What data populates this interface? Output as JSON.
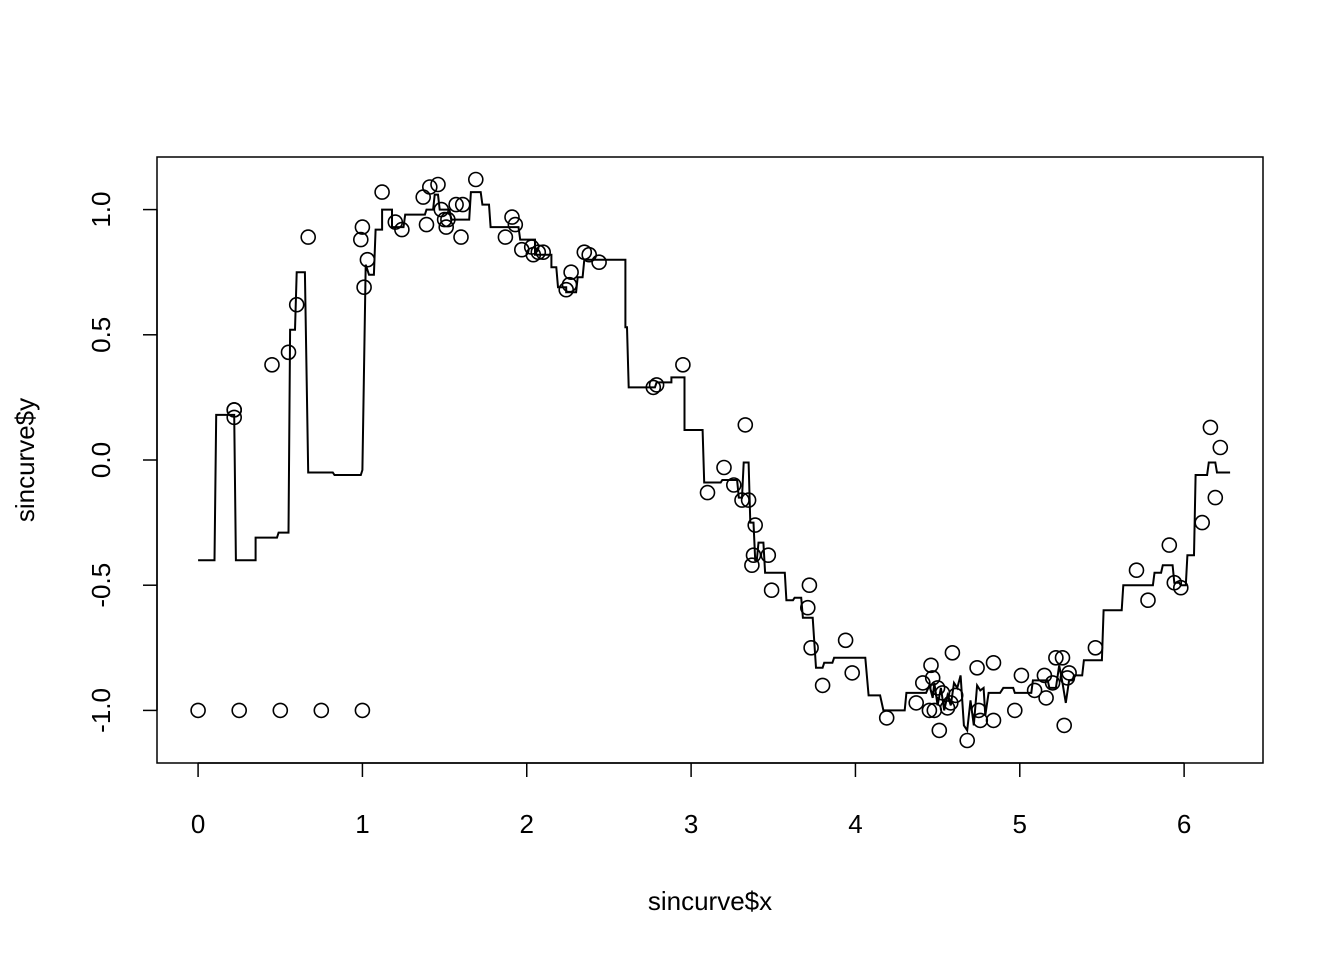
{
  "chart_data": {
    "type": "scatter",
    "title": "",
    "xlabel": "sincurve$x",
    "ylabel": "sincurve$y",
    "xlim": [
      -0.25,
      6.48
    ],
    "ylim": [
      -1.21,
      1.21
    ],
    "xticks": [
      "0",
      "1",
      "2",
      "3",
      "4",
      "5",
      "6"
    ],
    "yticks": [
      "-1.0",
      "-0.5",
      "0.0",
      "0.5",
      "1.0"
    ],
    "grid": false,
    "legend": "none",
    "colors": {
      "points": "#000000",
      "line": "#000000",
      "frame": "#000000"
    },
    "series": [
      {
        "type": "scatter",
        "points": [
          [
            0.0,
            -1.0
          ],
          [
            0.25,
            -1.0
          ],
          [
            0.5,
            -1.0
          ],
          [
            0.75,
            -1.0
          ],
          [
            1.0,
            -1.0
          ],
          [
            0.22,
            0.2
          ],
          [
            0.22,
            0.2
          ],
          [
            0.22,
            0.17
          ],
          [
            0.45,
            0.38
          ],
          [
            0.55,
            0.43
          ],
          [
            0.6,
            0.62
          ],
          [
            0.67,
            0.89
          ],
          [
            0.99,
            0.88
          ],
          [
            1.0,
            0.93
          ],
          [
            1.01,
            0.69
          ],
          [
            1.03,
            0.8
          ],
          [
            1.12,
            1.07
          ],
          [
            1.2,
            0.95
          ],
          [
            1.24,
            0.92
          ],
          [
            1.37,
            1.05
          ],
          [
            1.39,
            0.94
          ],
          [
            1.41,
            1.09
          ],
          [
            1.46,
            1.1
          ],
          [
            1.48,
            1.0
          ],
          [
            1.5,
            0.96
          ],
          [
            1.51,
            0.93
          ],
          [
            1.52,
            0.96
          ],
          [
            1.57,
            1.02
          ],
          [
            1.61,
            1.02
          ],
          [
            1.6,
            0.89
          ],
          [
            1.69,
            1.12
          ],
          [
            1.87,
            0.89
          ],
          [
            1.91,
            0.97
          ],
          [
            1.93,
            0.94
          ],
          [
            1.97,
            0.84
          ],
          [
            2.03,
            0.85
          ],
          [
            2.04,
            0.82
          ],
          [
            2.07,
            0.83
          ],
          [
            2.1,
            0.83
          ],
          [
            2.24,
            0.68
          ],
          [
            2.26,
            0.7
          ],
          [
            2.27,
            0.75
          ],
          [
            2.35,
            0.83
          ],
          [
            2.38,
            0.82
          ],
          [
            2.44,
            0.79
          ],
          [
            2.77,
            0.29
          ],
          [
            2.79,
            0.3
          ],
          [
            2.95,
            0.38
          ],
          [
            3.1,
            -0.13
          ],
          [
            3.2,
            -0.03
          ],
          [
            3.26,
            -0.1
          ],
          [
            3.31,
            -0.16
          ],
          [
            3.33,
            0.14
          ],
          [
            3.35,
            -0.16
          ],
          [
            3.37,
            -0.42
          ],
          [
            3.38,
            -0.38
          ],
          [
            3.39,
            -0.26
          ],
          [
            3.47,
            -0.38
          ],
          [
            3.49,
            -0.52
          ],
          [
            3.71,
            -0.59
          ],
          [
            3.72,
            -0.5
          ],
          [
            3.73,
            -0.75
          ],
          [
            3.8,
            -0.9
          ],
          [
            3.94,
            -0.72
          ],
          [
            3.98,
            -0.85
          ],
          [
            4.19,
            -1.03
          ],
          [
            4.37,
            -0.97
          ],
          [
            4.41,
            -0.89
          ],
          [
            4.45,
            -1.0
          ],
          [
            4.46,
            -0.82
          ],
          [
            4.47,
            -0.87
          ],
          [
            4.48,
            -1.0
          ],
          [
            4.5,
            -0.91
          ],
          [
            4.51,
            -1.08
          ],
          [
            4.53,
            -0.93
          ],
          [
            4.56,
            -0.99
          ],
          [
            4.58,
            -0.97
          ],
          [
            4.59,
            -0.77
          ],
          [
            4.61,
            -0.94
          ],
          [
            4.68,
            -1.12
          ],
          [
            4.74,
            -0.83
          ],
          [
            4.75,
            -1.0
          ],
          [
            4.76,
            -1.04
          ],
          [
            4.84,
            -0.81
          ],
          [
            4.84,
            -1.04
          ],
          [
            4.97,
            -1.0
          ],
          [
            5.01,
            -0.86
          ],
          [
            5.09,
            -0.92
          ],
          [
            5.15,
            -0.86
          ],
          [
            5.16,
            -0.95
          ],
          [
            5.2,
            -0.89
          ],
          [
            5.22,
            -0.79
          ],
          [
            5.26,
            -0.79
          ],
          [
            5.27,
            -1.06
          ],
          [
            5.29,
            -0.87
          ],
          [
            5.3,
            -0.85
          ],
          [
            5.46,
            -0.75
          ],
          [
            5.71,
            -0.44
          ],
          [
            5.78,
            -0.56
          ],
          [
            5.91,
            -0.34
          ],
          [
            5.94,
            -0.49
          ],
          [
            5.98,
            -0.51
          ],
          [
            6.11,
            -0.25
          ],
          [
            6.16,
            0.13
          ],
          [
            6.19,
            -0.15
          ],
          [
            6.22,
            0.05
          ]
        ]
      },
      {
        "type": "step-line",
        "points": [
          [
            0.0,
            -0.4
          ],
          [
            0.1,
            -0.4
          ],
          [
            0.11,
            0.18
          ],
          [
            0.22,
            0.18
          ],
          [
            0.23,
            -0.4
          ],
          [
            0.35,
            -0.4
          ],
          [
            0.35,
            -0.31
          ],
          [
            0.48,
            -0.31
          ],
          [
            0.49,
            -0.29
          ],
          [
            0.55,
            -0.29
          ],
          [
            0.56,
            0.52
          ],
          [
            0.59,
            0.52
          ],
          [
            0.6,
            0.75
          ],
          [
            0.65,
            0.75
          ],
          [
            0.67,
            -0.05
          ],
          [
            0.82,
            -0.05
          ],
          [
            0.83,
            -0.06
          ],
          [
            0.99,
            -0.06
          ],
          [
            1.0,
            -0.04
          ],
          [
            1.02,
            0.78
          ],
          [
            1.04,
            0.74
          ],
          [
            1.07,
            0.74
          ],
          [
            1.08,
            0.92
          ],
          [
            1.12,
            0.92
          ],
          [
            1.12,
            1.0
          ],
          [
            1.18,
            1.0
          ],
          [
            1.18,
            0.93
          ],
          [
            1.25,
            0.93
          ],
          [
            1.26,
            0.98
          ],
          [
            1.38,
            0.98
          ],
          [
            1.39,
            1.0
          ],
          [
            1.43,
            1.0
          ],
          [
            1.44,
            1.06
          ],
          [
            1.46,
            1.06
          ],
          [
            1.47,
            1.0
          ],
          [
            1.53,
            1.0
          ],
          [
            1.54,
            0.96
          ],
          [
            1.65,
            0.96
          ],
          [
            1.66,
            1.07
          ],
          [
            1.72,
            1.07
          ],
          [
            1.73,
            1.02
          ],
          [
            1.77,
            1.02
          ],
          [
            1.78,
            0.93
          ],
          [
            1.88,
            0.93
          ],
          [
            1.89,
            0.93
          ],
          [
            1.95,
            0.93
          ],
          [
            1.96,
            0.88
          ],
          [
            2.05,
            0.88
          ],
          [
            2.05,
            0.82
          ],
          [
            2.15,
            0.82
          ],
          [
            2.15,
            0.77
          ],
          [
            2.18,
            0.77
          ],
          [
            2.19,
            0.69
          ],
          [
            2.24,
            0.69
          ],
          [
            2.24,
            0.67
          ],
          [
            2.3,
            0.67
          ],
          [
            2.31,
            0.73
          ],
          [
            2.34,
            0.73
          ],
          [
            2.35,
            0.8
          ],
          [
            2.6,
            0.8
          ],
          [
            2.6,
            0.53
          ],
          [
            2.61,
            0.53
          ],
          [
            2.62,
            0.29
          ],
          [
            2.78,
            0.29
          ],
          [
            2.79,
            0.31
          ],
          [
            2.88,
            0.31
          ],
          [
            2.88,
            0.33
          ],
          [
            2.96,
            0.33
          ],
          [
            2.96,
            0.12
          ],
          [
            3.07,
            0.12
          ],
          [
            3.08,
            -0.09
          ],
          [
            3.18,
            -0.09
          ],
          [
            3.19,
            -0.08
          ],
          [
            3.28,
            -0.08
          ],
          [
            3.29,
            -0.15
          ],
          [
            3.31,
            -0.15
          ],
          [
            3.32,
            -0.01
          ],
          [
            3.35,
            -0.01
          ],
          [
            3.36,
            -0.25
          ],
          [
            3.38,
            -0.25
          ],
          [
            3.39,
            -0.4
          ],
          [
            3.4,
            -0.4
          ],
          [
            3.41,
            -0.33
          ],
          [
            3.44,
            -0.33
          ],
          [
            3.45,
            -0.45
          ],
          [
            3.57,
            -0.45
          ],
          [
            3.58,
            -0.56
          ],
          [
            3.62,
            -0.56
          ],
          [
            3.63,
            -0.55
          ],
          [
            3.67,
            -0.55
          ],
          [
            3.68,
            -0.63
          ],
          [
            3.74,
            -0.63
          ],
          [
            3.76,
            -0.83
          ],
          [
            3.8,
            -0.83
          ],
          [
            3.81,
            -0.81
          ],
          [
            3.86,
            -0.81
          ],
          [
            3.87,
            -0.79
          ],
          [
            4.06,
            -0.79
          ],
          [
            4.08,
            -0.94
          ],
          [
            4.15,
            -0.94
          ],
          [
            4.17,
            -1.0
          ],
          [
            4.3,
            -1.0
          ],
          [
            4.31,
            -0.93
          ],
          [
            4.43,
            -0.93
          ],
          [
            4.45,
            -0.9
          ],
          [
            4.47,
            -0.95
          ],
          [
            4.48,
            -0.89
          ],
          [
            4.5,
            -0.98
          ],
          [
            4.52,
            -0.91
          ],
          [
            4.54,
            -1.0
          ],
          [
            4.56,
            -0.94
          ],
          [
            4.58,
            -0.98
          ],
          [
            4.6,
            -0.89
          ],
          [
            4.62,
            -0.91
          ],
          [
            4.64,
            -0.86
          ],
          [
            4.66,
            -1.06
          ],
          [
            4.68,
            -1.08
          ],
          [
            4.7,
            -0.96
          ],
          [
            4.72,
            -1.06
          ],
          [
            4.74,
            -0.9
          ],
          [
            4.76,
            -0.92
          ],
          [
            4.78,
            -0.91
          ],
          [
            4.79,
            -1.02
          ],
          [
            4.81,
            -0.93
          ],
          [
            4.88,
            -0.93
          ],
          [
            4.9,
            -0.91
          ],
          [
            4.96,
            -0.91
          ],
          [
            4.97,
            -0.93
          ],
          [
            5.07,
            -0.93
          ],
          [
            5.08,
            -0.88
          ],
          [
            5.17,
            -0.88
          ],
          [
            5.18,
            -0.91
          ],
          [
            5.22,
            -0.91
          ],
          [
            5.24,
            -0.82
          ],
          [
            5.26,
            -0.89
          ],
          [
            5.28,
            -0.97
          ],
          [
            5.3,
            -0.88
          ],
          [
            5.32,
            -0.88
          ],
          [
            5.33,
            -0.86
          ],
          [
            5.38,
            -0.86
          ],
          [
            5.39,
            -0.8
          ],
          [
            5.5,
            -0.8
          ],
          [
            5.51,
            -0.6
          ],
          [
            5.62,
            -0.6
          ],
          [
            5.63,
            -0.5
          ],
          [
            5.81,
            -0.5
          ],
          [
            5.82,
            -0.45
          ],
          [
            5.86,
            -0.45
          ],
          [
            5.87,
            -0.42
          ],
          [
            5.93,
            -0.42
          ],
          [
            5.94,
            -0.49
          ],
          [
            5.97,
            -0.49
          ],
          [
            5.98,
            -0.5
          ],
          [
            6.01,
            -0.5
          ],
          [
            6.02,
            -0.38
          ],
          [
            6.06,
            -0.38
          ],
          [
            6.07,
            -0.06
          ],
          [
            6.14,
            -0.06
          ],
          [
            6.15,
            -0.01
          ],
          [
            6.19,
            -0.01
          ],
          [
            6.2,
            -0.05
          ],
          [
            6.28,
            -0.05
          ]
        ]
      }
    ]
  }
}
